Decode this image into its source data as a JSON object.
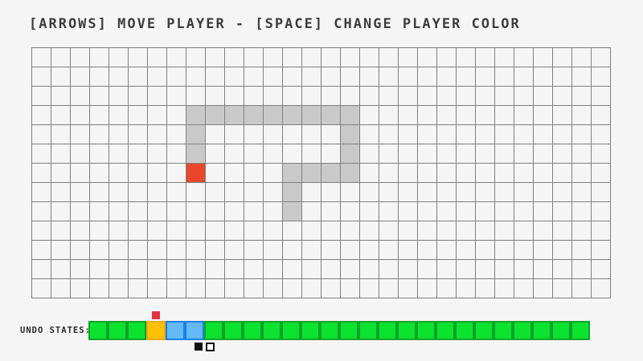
{
  "title": "[ARROWS] MOVE PLAYER - [SPACE] CHANGE PLAYER COLOR",
  "colors": {
    "background": "#f5f5f5",
    "grid_line": "#808080",
    "trail": "#c9c9c9",
    "player": "#e8472b",
    "marker_red": "#e23347",
    "swatch_black": "#111111",
    "green_fill": "#0ce32e",
    "green_border": "#0aa32b",
    "orange_fill": "#ffc107",
    "orange_border": "#f0a80a",
    "blue_fill": "#64baf6",
    "blue_border": "#1a80e8"
  },
  "board": {
    "cols": 30,
    "rows": 13,
    "cell_size": 24,
    "trail_cells": [
      [
        8,
        3
      ],
      [
        9,
        3
      ],
      [
        10,
        3
      ],
      [
        11,
        3
      ],
      [
        12,
        3
      ],
      [
        13,
        3
      ],
      [
        14,
        3
      ],
      [
        15,
        3
      ],
      [
        16,
        3
      ],
      [
        8,
        4
      ],
      [
        8,
        5
      ],
      [
        16,
        4
      ],
      [
        16,
        5
      ],
      [
        13,
        6
      ],
      [
        14,
        6
      ],
      [
        15,
        6
      ],
      [
        16,
        6
      ],
      [
        13,
        7
      ],
      [
        13,
        8
      ]
    ],
    "player_cell": {
      "col": 8,
      "row": 6
    }
  },
  "undo_bar": {
    "label": "UNDO STATES:",
    "cell_size": 24,
    "marker_index": 3,
    "states": [
      "green",
      "green",
      "green",
      "orange",
      "blue",
      "blue",
      "green",
      "green",
      "green",
      "green",
      "green",
      "green",
      "green",
      "green",
      "green",
      "green",
      "green",
      "green",
      "green",
      "green",
      "green",
      "green",
      "green",
      "green",
      "green",
      "green"
    ],
    "swatches": [
      "black-filled",
      "white-outline"
    ]
  }
}
